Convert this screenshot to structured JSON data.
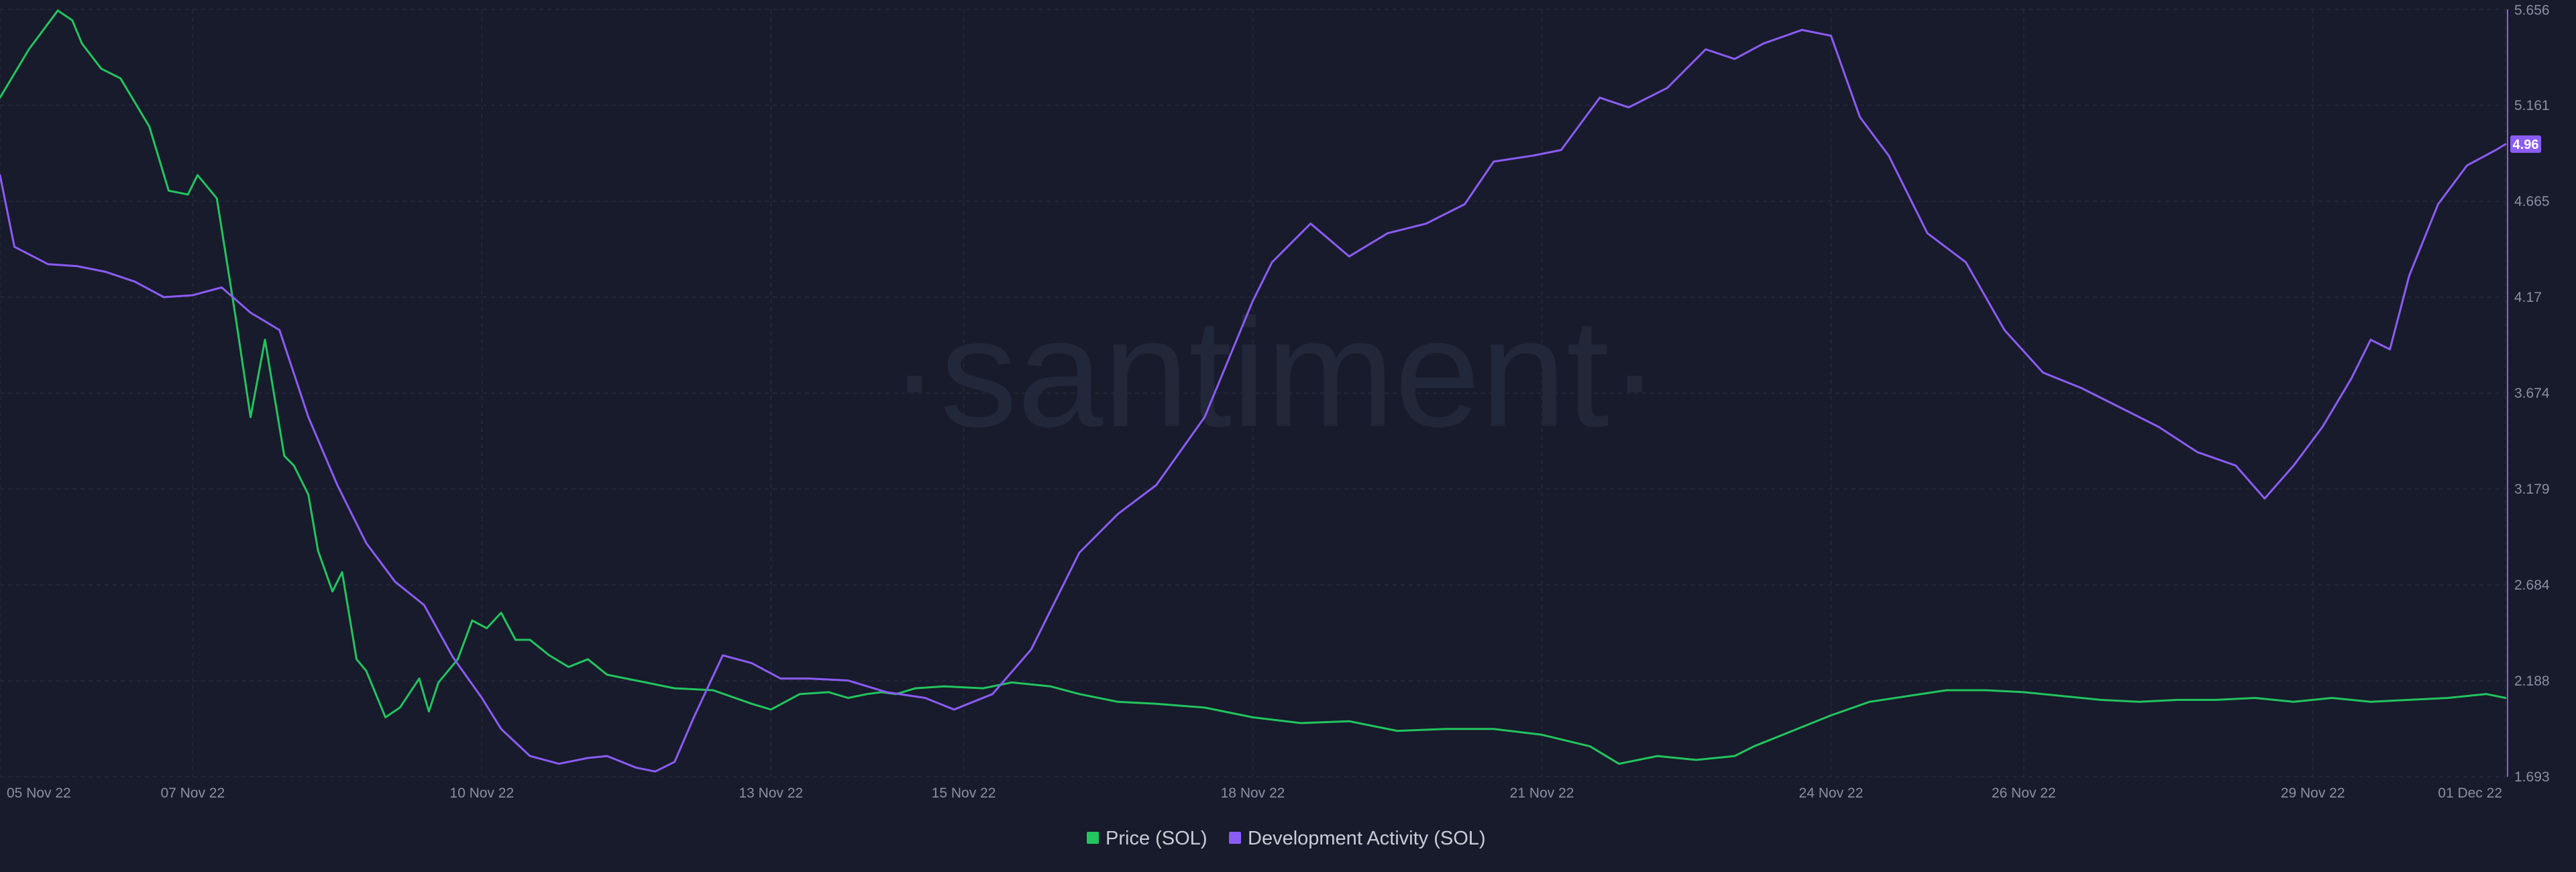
{
  "chart_data": {
    "type": "line",
    "title": "",
    "watermark": "·santiment·",
    "x_ticks": [
      "05 Nov 22",
      "07 Nov 22",
      "10 Nov 22",
      "13 Nov 22",
      "15 Nov 22",
      "18 Nov 22",
      "21 Nov 22",
      "24 Nov 22",
      "26 Nov 22",
      "29 Nov 22",
      "01 Dec 22"
    ],
    "x_tick_days": [
      0,
      2,
      5,
      8,
      10,
      13,
      16,
      19,
      21,
      24,
      26
    ],
    "xlim_days": [
      0,
      26
    ],
    "y_right": {
      "ticks": [
        "1.693",
        "2.188",
        "2.684",
        "3.179",
        "3.674",
        "4.17",
        "4.665",
        "5.161",
        "5.656"
      ],
      "ylim": [
        1.693,
        5.656
      ],
      "color": "#8b5cf6"
    },
    "current_value_badge": "4.96",
    "legend": {
      "position": "bottom-center"
    },
    "grid": true,
    "series": [
      {
        "name": "Price (SOL)",
        "color": "#22c55e",
        "axis": "hidden",
        "x_days": [
          0,
          0.3,
          0.6,
          0.75,
          0.85,
          1.05,
          1.25,
          1.55,
          1.75,
          1.95,
          2.05,
          2.25,
          2.45,
          2.6,
          2.75,
          2.95,
          3.05,
          3.2,
          3.3,
          3.45,
          3.55,
          3.7,
          3.8,
          4.0,
          4.15,
          4.35,
          4.45,
          4.55,
          4.75,
          4.9,
          5.05,
          5.2,
          5.35,
          5.5,
          5.7,
          5.9,
          6.1,
          6.3,
          6.6,
          7.0,
          7.4,
          7.8,
          8.0,
          8.3,
          8.6,
          8.8,
          9.0,
          9.15,
          9.3,
          9.5,
          9.8,
          10.2,
          10.5,
          10.9,
          11.2,
          11.6,
          12.0,
          12.5,
          13.0,
          13.5,
          14.0,
          14.5,
          15.0,
          15.5,
          16.0,
          16.5,
          16.8,
          17.2,
          17.6,
          18.0,
          18.2,
          18.6,
          19.0,
          19.4,
          19.8,
          20.2,
          20.6,
          21.0,
          21.4,
          21.8,
          22.2,
          22.6,
          23.0,
          23.4,
          23.8,
          24.2,
          24.6,
          25.0,
          25.4,
          25.8,
          26.0
        ],
        "values": [
          5.2,
          5.45,
          5.65,
          5.6,
          5.48,
          5.35,
          5.3,
          5.05,
          4.72,
          4.7,
          4.8,
          4.68,
          4.05,
          3.55,
          3.95,
          3.35,
          3.3,
          3.15,
          2.86,
          2.65,
          2.75,
          2.3,
          2.24,
          2.0,
          2.05,
          2.2,
          2.03,
          2.18,
          2.3,
          2.5,
          2.46,
          2.54,
          2.4,
          2.4,
          2.32,
          2.26,
          2.3,
          2.22,
          2.19,
          2.15,
          2.14,
          2.07,
          2.04,
          2.12,
          2.13,
          2.1,
          2.12,
          2.13,
          2.12,
          2.15,
          2.16,
          2.15,
          2.18,
          2.16,
          2.12,
          2.08,
          2.07,
          2.05,
          2.0,
          1.97,
          1.98,
          1.93,
          1.94,
          1.94,
          1.91,
          1.85,
          1.76,
          1.8,
          1.78,
          1.8,
          1.85,
          1.93,
          2.01,
          2.08,
          2.11,
          2.14,
          2.14,
          2.13,
          2.11,
          2.09,
          2.08,
          2.09,
          2.09,
          2.1,
          2.08,
          2.1,
          2.08,
          2.09,
          2.1,
          2.12,
          2.1
        ],
        "price_scale": {
          "min": 1.693,
          "max": 5.656
        }
      },
      {
        "name": "Development Activity (SOL)",
        "color": "#8b5cf6",
        "axis": "right",
        "x_days": [
          0,
          0.15,
          0.5,
          0.8,
          1.1,
          1.4,
          1.7,
          2.0,
          2.3,
          2.6,
          2.9,
          3.2,
          3.5,
          3.8,
          4.1,
          4.4,
          4.7,
          5.0,
          5.2,
          5.5,
          5.8,
          6.1,
          6.3,
          6.6,
          6.8,
          7.0,
          7.2,
          7.5,
          7.8,
          8.1,
          8.4,
          8.8,
          9.2,
          9.6,
          9.9,
          10.3,
          10.7,
          11.2,
          11.6,
          12.0,
          12.5,
          13.0,
          13.2,
          13.6,
          14.0,
          14.4,
          14.8,
          15.2,
          15.5,
          15.9,
          16.2,
          16.6,
          16.9,
          17.3,
          17.7,
          18.0,
          18.3,
          18.7,
          19.0,
          19.3,
          19.6,
          20.0,
          20.4,
          20.8,
          21.2,
          21.6,
          22.0,
          22.4,
          22.8,
          23.2,
          23.5,
          23.8,
          24.1,
          24.4,
          24.6,
          24.8,
          25.0,
          25.3,
          25.6,
          25.9,
          26.0
        ],
        "values": [
          4.8,
          4.43,
          4.34,
          4.33,
          4.3,
          4.25,
          4.17,
          4.18,
          4.22,
          4.09,
          4.0,
          3.55,
          3.2,
          2.9,
          2.7,
          2.58,
          2.31,
          2.1,
          1.94,
          1.8,
          1.76,
          1.79,
          1.8,
          1.74,
          1.72,
          1.77,
          2.0,
          2.32,
          2.28,
          2.2,
          2.2,
          2.19,
          2.13,
          2.1,
          2.04,
          2.12,
          2.35,
          2.85,
          3.05,
          3.2,
          3.55,
          4.15,
          4.35,
          4.55,
          4.38,
          4.5,
          4.55,
          4.65,
          4.87,
          4.9,
          4.93,
          5.2,
          5.15,
          5.25,
          5.45,
          5.4,
          5.48,
          5.55,
          5.52,
          5.1,
          4.9,
          4.5,
          4.35,
          4.0,
          3.78,
          3.7,
          3.6,
          3.5,
          3.37,
          3.3,
          3.13,
          3.3,
          3.5,
          3.75,
          3.95,
          3.9,
          4.28,
          4.65,
          4.85,
          4.93,
          4.96
        ]
      }
    ]
  }
}
